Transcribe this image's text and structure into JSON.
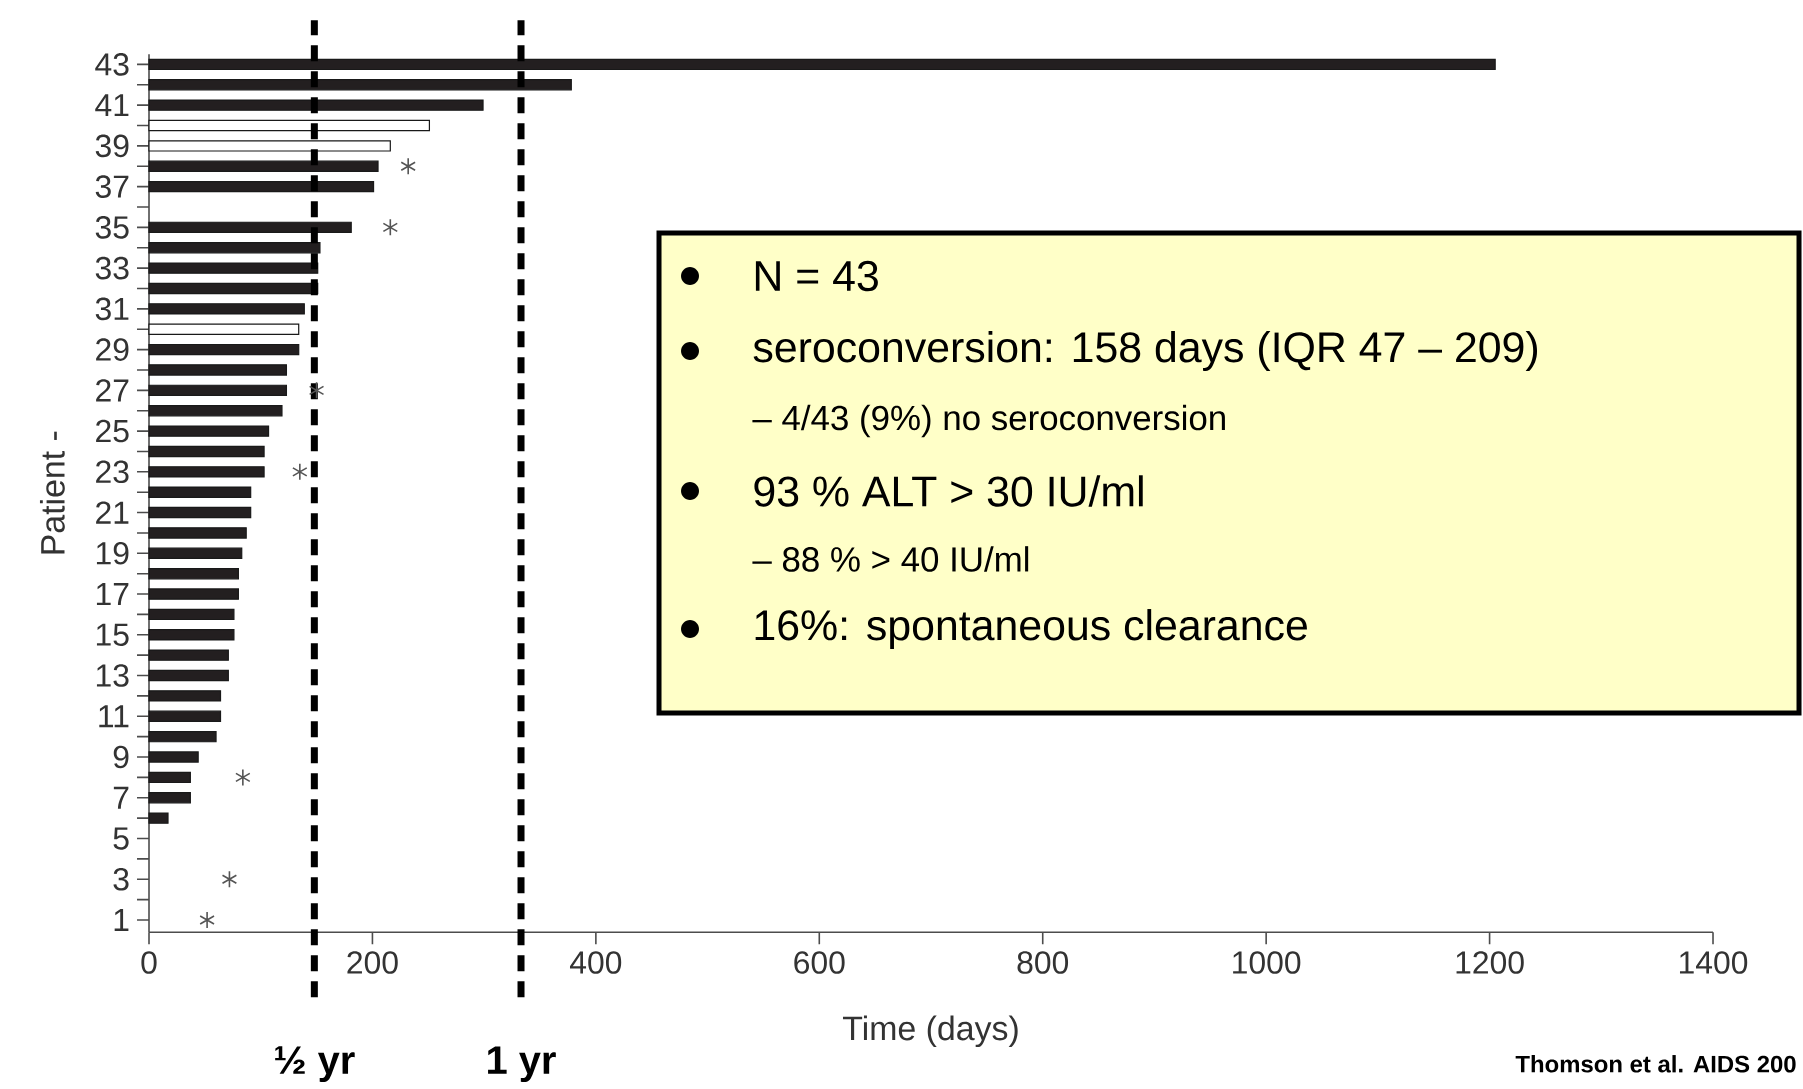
{
  "chart_data": {
    "type": "bar",
    "orientation": "horizontal",
    "xlabel": "Time (days)",
    "ylabel": "Patient -",
    "categories": [
      "43",
      null,
      "41",
      null,
      "39",
      null,
      "37",
      null,
      "35",
      null,
      "33",
      null,
      "31",
      null,
      "29",
      null,
      "27",
      null,
      "25",
      null,
      "23",
      null,
      "21",
      null,
      "19",
      null,
      "17",
      null,
      "15",
      null,
      "13",
      null,
      "11",
      null,
      "9",
      null,
      "7",
      null,
      "5",
      null,
      "3",
      null,
      "1"
    ],
    "series": [
      {
        "values": [
          1205,
          378,
          299,
          251,
          216,
          205,
          201,
          null,
          181,
          153,
          151,
          151,
          139,
          134,
          134,
          123,
          123,
          119,
          107,
          103,
          103,
          91,
          91,
          87,
          83,
          80,
          80,
          76,
          76,
          71,
          71,
          64,
          64,
          60,
          44,
          37,
          37,
          17,
          null,
          null,
          null,
          null,
          null
        ],
        "colors": [
          "#231f20",
          "#231f20",
          "#231f20",
          "#ffffff",
          "#ffffff",
          "#231f20",
          "#231f20",
          "#231f20",
          "#231f20",
          "#231f20",
          "#231f20",
          "#231f20",
          "#231f20",
          "#ffffff",
          "#231f20",
          "#231f20",
          "#231f20",
          "#231f20",
          "#231f20",
          "#231f20",
          "#231f20",
          "#231f20",
          "#231f20",
          "#231f20",
          "#231f20",
          "#231f20",
          "#231f20",
          "#231f20",
          "#231f20",
          "#231f20",
          "#231f20",
          "#231f20",
          "#231f20",
          "#231f20",
          "#231f20",
          "#231f20",
          "#231f20",
          "#231f20",
          "#231f20",
          "#231f20",
          "#231f20",
          "#231f20",
          "#231f20"
        ]
      },
      {
        "type": "scatter",
        "marker": "cross",
        "color": "#555555",
        "values": [
          null,
          null,
          null,
          null,
          null,
          232,
          null,
          null,
          216,
          null,
          null,
          null,
          null,
          null,
          null,
          null,
          150,
          null,
          null,
          null,
          135,
          null,
          null,
          null,
          null,
          null,
          null,
          null,
          null,
          null,
          null,
          null,
          null,
          null,
          null,
          84,
          null,
          null,
          null,
          null,
          72,
          null,
          52
        ]
      }
    ],
    "xlim": [
      0,
      1400
    ],
    "xticks": [
      0,
      200,
      400,
      600,
      800,
      1000,
      1200,
      1400
    ],
    "ref_lines": [
      {
        "axis": "x",
        "value": 148,
        "label": "½ yr",
        "color": "#000000",
        "line_style": "dashed"
      },
      {
        "axis": "x",
        "value": 333,
        "label": "1 yr",
        "color": "#000000",
        "line_style": "dashed"
      }
    ],
    "annotations": [
      "N = 43",
      "seroconversion: 158 days (IQR 47 – 209)",
      "– 4/43 (9%) no seroconversion",
      "93 % ALT > 30 IU/ml",
      "– 88 % > 40 IU/ml",
      "16%: spontaneous clearance",
      "Thomson et al. AIDS 200"
    ]
  }
}
